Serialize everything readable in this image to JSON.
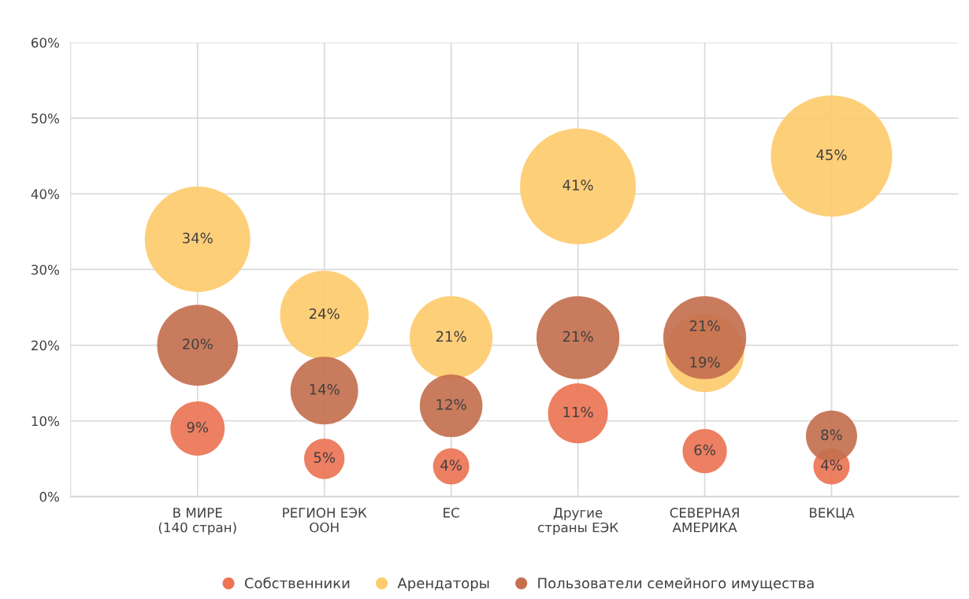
{
  "chart_data": {
    "type": "bubble",
    "categories": [
      "В МИРЕ\n(140 стран)",
      "РЕГИОН ЕЭК\nООН",
      "ЕС",
      "Другие\nстраны ЕЭК",
      "СЕВЕРНАЯ\nАМЕРИКА",
      "ВЕКЦА"
    ],
    "series": [
      {
        "name": "Собственники",
        "color": "#ec7455",
        "values": [
          9,
          5,
          4,
          11,
          6,
          4
        ],
        "sizes": [
          0.2,
          0.111,
          0.089,
          0.244,
          0.133,
          0.089
        ],
        "value_labels": [
          "9%",
          "5%",
          "4%",
          "11%",
          "6%",
          "4%"
        ]
      },
      {
        "name": "Арендаторы",
        "color": "#fecb6e",
        "values": [
          34,
          24,
          21,
          41,
          19,
          45
        ],
        "sizes": [
          0.756,
          0.533,
          0.467,
          0.911,
          0.422,
          1
        ],
        "value_labels": [
          "34%",
          "24%",
          "21%",
          "41%",
          "19%",
          "45%"
        ]
      },
      {
        "name": "Пользователи семейного имущества",
        "color": "#c4704f",
        "values": [
          20,
          14,
          12,
          21,
          21,
          8
        ],
        "sizes": [
          0.444,
          0.311,
          0.267,
          0.467,
          0.467,
          0.178
        ],
        "value_labels": [
          "20%",
          "14%",
          "12%",
          "21%",
          "21%",
          "8%"
        ]
      }
    ],
    "ylim": [
      0,
      60
    ],
    "yticks": [
      {
        "value": 0,
        "label": "0%"
      },
      {
        "value": 10,
        "label": "10%"
      },
      {
        "value": 20,
        "label": "20%"
      },
      {
        "value": 30,
        "label": "30%"
      },
      {
        "value": 40,
        "label": "40%"
      },
      {
        "value": 50,
        "label": "50%"
      },
      {
        "value": 60,
        "label": "60%"
      }
    ],
    "grid": true,
    "legend": "bottom",
    "marker": "circle"
  }
}
